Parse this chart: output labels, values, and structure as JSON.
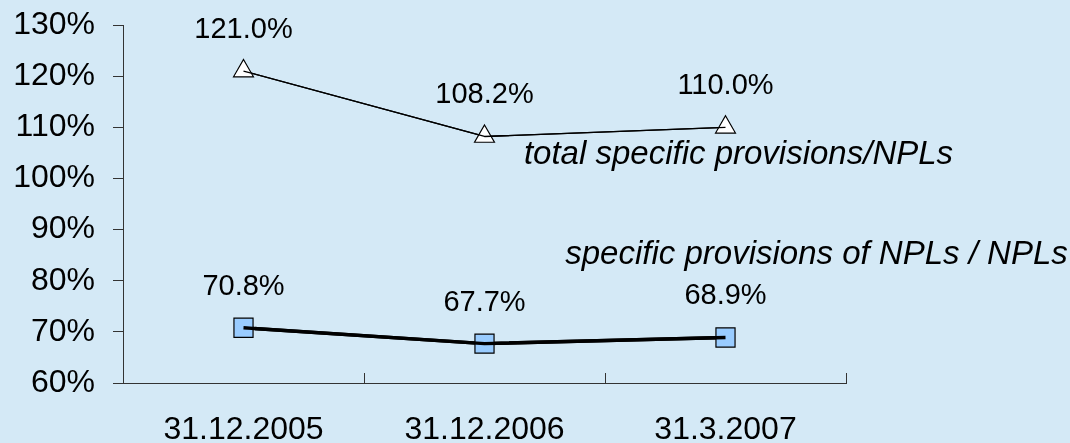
{
  "chart_data": {
    "type": "line",
    "categories": [
      "31.12.2005",
      "31.12.2006",
      "31.3.2007"
    ],
    "series": [
      {
        "name": "total specific provisions/NPLs",
        "color": "#000000",
        "colors": [
          "#ffffff",
          "#ffffff",
          "#ffffff"
        ],
        "marker": "triangle",
        "values": [
          121.0,
          108.2,
          110.0
        ],
        "value_labels": [
          "121.0%",
          "108.2%",
          "110.0%"
        ]
      },
      {
        "name": "specific provisions of NPLs / NPLs",
        "color": "#000000",
        "colors": [
          "#99ccff",
          "#99ccff",
          "#99ccff"
        ],
        "marker": "square",
        "values": [
          70.8,
          67.7,
          68.9
        ],
        "value_labels": [
          "70.8%",
          "67.7%",
          "68.9%"
        ]
      }
    ],
    "ylim": [
      60,
      130
    ],
    "yticks": [
      {
        "value": 60,
        "label": "60%"
      },
      {
        "value": 70,
        "label": "70%"
      },
      {
        "value": 80,
        "label": "80%"
      },
      {
        "value": 90,
        "label": "90%"
      },
      {
        "value": 100,
        "label": "100%"
      },
      {
        "value": 110,
        "label": "110%"
      },
      {
        "value": 120,
        "label": "120%"
      },
      {
        "value": 130,
        "label": "130%"
      }
    ]
  }
}
